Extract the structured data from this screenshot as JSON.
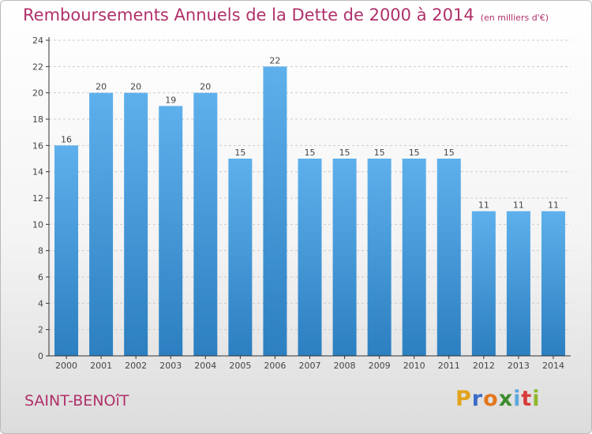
{
  "chart_data": {
    "type": "bar",
    "title": "Remboursements Annuels de la Dette de 2000 à 2014",
    "unit_label": "(en milliers d'€)",
    "categories": [
      "2000",
      "2001",
      "2002",
      "2003",
      "2004",
      "2005",
      "2006",
      "2007",
      "2008",
      "2009",
      "2010",
      "2011",
      "2012",
      "2013",
      "2014"
    ],
    "values": [
      16,
      20,
      20,
      19,
      20,
      15,
      22,
      15,
      15,
      15,
      15,
      15,
      11,
      11,
      11
    ],
    "ylim": [
      0,
      24
    ],
    "yticks": [
      0,
      2,
      4,
      6,
      8,
      10,
      12,
      14,
      16,
      18,
      20,
      22,
      24
    ],
    "grid": "horizontal-dashed",
    "xlabel": "",
    "ylabel": ""
  },
  "footer": {
    "city": "SAINT-BENOîT",
    "logo_letters": [
      "P",
      "r",
      "o",
      "x",
      "i",
      "t",
      "i"
    ],
    "logo_colors": [
      "#e2a41c",
      "#3b6bc7",
      "#e2761d",
      "#3b8c2c",
      "#5ea7dc",
      "#d83b3b",
      "#8fb82b"
    ]
  },
  "colors": {
    "title": "#b0306a",
    "bar_top": "#5eb0ec",
    "bar_bottom": "#2c7fc0",
    "axis": "#333333",
    "grid": "#cccccc",
    "label": "#444444"
  }
}
